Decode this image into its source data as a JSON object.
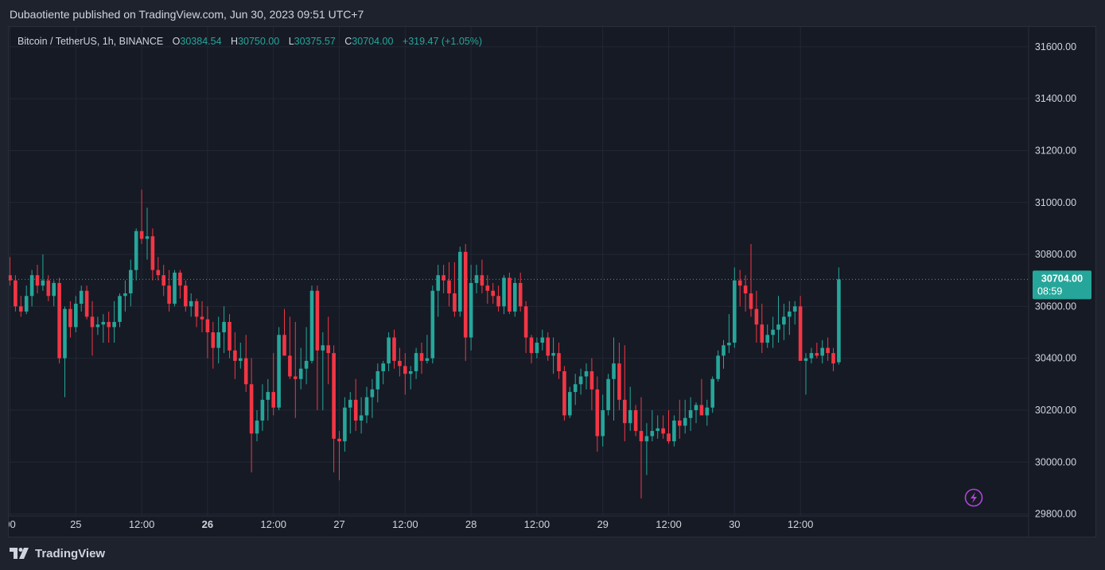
{
  "header": {
    "published": "Dubaotiente published on TradingView.com, Jun 30, 2023 09:51 UTC+7"
  },
  "legend": {
    "symbol": "Bitcoin / TetherUS, 1h, BINANCE",
    "o_label": "O",
    "o_value": "30384.54",
    "h_label": "H",
    "h_value": "30750.00",
    "l_label": "L",
    "l_value": "30375.57",
    "c_label": "C",
    "c_value": "30704.00",
    "change": "+319.47 (+1.05%)"
  },
  "price_tag": {
    "price": "30704.00",
    "countdown": "08:59"
  },
  "footer": {
    "brand": "TradingView"
  },
  "colors": {
    "up": "#26a69a",
    "down": "#f23645",
    "background": "#161a25",
    "grid": "#232735",
    "text": "#d1d4dc",
    "tag": "#26a69a",
    "bolt": "#b045d8"
  },
  "icons": {
    "logo": "tradingview-logo-icon",
    "bolt": "lightning-bolt-icon"
  },
  "chart_data": {
    "type": "candlestick",
    "title": "Bitcoin / TetherUS, 1h, BINANCE",
    "ylim": [
      29700,
      31700
    ],
    "y_ticks": [
      "31600.00",
      "31400.00",
      "31200.00",
      "31000.00",
      "30800.00",
      "30600.00",
      "30400.00",
      "30200.00",
      "30000.00",
      "29800.00"
    ],
    "x_ticks": [
      {
        "label": "00",
        "i": 0,
        "bold": false
      },
      {
        "label": "25",
        "i": 12,
        "bold": false
      },
      {
        "label": "12:00",
        "i": 24,
        "bold": false
      },
      {
        "label": "26",
        "i": 36,
        "bold": true
      },
      {
        "label": "12:00",
        "i": 48,
        "bold": false
      },
      {
        "label": "27",
        "i": 60,
        "bold": false
      },
      {
        "label": "12:00",
        "i": 72,
        "bold": false
      },
      {
        "label": "28",
        "i": 84,
        "bold": false
      },
      {
        "label": "12:00",
        "i": 96,
        "bold": false
      },
      {
        "label": "29",
        "i": 108,
        "bold": false
      },
      {
        "label": "12:00",
        "i": 120,
        "bold": false
      },
      {
        "label": "30",
        "i": 132,
        "bold": false
      },
      {
        "label": "12:00",
        "i": 144,
        "bold": false
      }
    ],
    "last_price": 30704,
    "grid": true,
    "candles": [
      [
        30720,
        30790,
        30680,
        30700
      ],
      [
        30700,
        30720,
        30580,
        30600
      ],
      [
        30600,
        30640,
        30560,
        30580
      ],
      [
        30580,
        30680,
        30570,
        30640
      ],
      [
        30640,
        30740,
        30600,
        30720
      ],
      [
        30720,
        30760,
        30650,
        30680
      ],
      [
        30680,
        30800,
        30660,
        30700
      ],
      [
        30700,
        30720,
        30620,
        30640
      ],
      [
        30640,
        30700,
        30600,
        30690
      ],
      [
        30690,
        30710,
        30380,
        30400
      ],
      [
        30400,
        30600,
        30250,
        30590
      ],
      [
        30590,
        30620,
        30480,
        30520
      ],
      [
        30520,
        30640,
        30500,
        30610
      ],
      [
        30610,
        30680,
        30580,
        30660
      ],
      [
        30660,
        30680,
        30550,
        30560
      ],
      [
        30560,
        30620,
        30410,
        30520
      ],
      [
        30520,
        30560,
        30490,
        30530
      ],
      [
        30530,
        30570,
        30460,
        30540
      ],
      [
        30540,
        30580,
        30460,
        30520
      ],
      [
        30520,
        30620,
        30460,
        30540
      ],
      [
        30540,
        30650,
        30520,
        30640
      ],
      [
        30640,
        30700,
        30580,
        30650
      ],
      [
        30650,
        30780,
        30600,
        30740
      ],
      [
        30740,
        30900,
        30700,
        30890
      ],
      [
        30890,
        31050,
        30840,
        30860
      ],
      [
        30860,
        30980,
        30780,
        30870
      ],
      [
        30870,
        30900,
        30700,
        30740
      ],
      [
        30740,
        30790,
        30700,
        30720
      ],
      [
        30720,
        30760,
        30640,
        30680
      ],
      [
        30680,
        30740,
        30580,
        30610
      ],
      [
        30610,
        30740,
        30600,
        30730
      ],
      [
        30730,
        30740,
        30630,
        30680
      ],
      [
        30680,
        30700,
        30580,
        30600
      ],
      [
        30600,
        30650,
        30560,
        30620
      ],
      [
        30620,
        30630,
        30520,
        30560
      ],
      [
        30560,
        30620,
        30500,
        30550
      ],
      [
        30550,
        30600,
        30400,
        30500
      ],
      [
        30500,
        30540,
        30360,
        30440
      ],
      [
        30440,
        30560,
        30380,
        30500
      ],
      [
        30500,
        30600,
        30420,
        30540
      ],
      [
        30540,
        30570,
        30400,
        30430
      ],
      [
        30430,
        30500,
        30320,
        30390
      ],
      [
        30390,
        30460,
        30360,
        30400
      ],
      [
        30400,
        30490,
        30270,
        30300
      ],
      [
        30300,
        30400,
        29960,
        30110
      ],
      [
        30110,
        30200,
        30080,
        30160
      ],
      [
        30160,
        30300,
        30120,
        30240
      ],
      [
        30240,
        30320,
        30160,
        30270
      ],
      [
        30270,
        30420,
        30180,
        30210
      ],
      [
        30210,
        30520,
        30200,
        30490
      ],
      [
        30490,
        30590,
        30420,
        30410
      ],
      [
        30410,
        30560,
        30320,
        30330
      ],
      [
        30330,
        30540,
        30170,
        30320
      ],
      [
        30320,
        30440,
        30280,
        30360
      ],
      [
        30360,
        30520,
        30300,
        30390
      ],
      [
        30390,
        30680,
        30380,
        30660
      ],
      [
        30660,
        30680,
        30200,
        30430
      ],
      [
        30430,
        30500,
        30200,
        30450
      ],
      [
        30450,
        30560,
        30300,
        30420
      ],
      [
        30420,
        30450,
        29960,
        30090
      ],
      [
        30090,
        30120,
        29930,
        30080
      ],
      [
        30080,
        30250,
        30040,
        30210
      ],
      [
        30210,
        30270,
        30110,
        30240
      ],
      [
        30240,
        30320,
        30120,
        30160
      ],
      [
        30160,
        30250,
        30110,
        30180
      ],
      [
        30180,
        30290,
        30150,
        30250
      ],
      [
        30250,
        30320,
        30170,
        30280
      ],
      [
        30280,
        30380,
        30230,
        30350
      ],
      [
        30350,
        30390,
        30300,
        30380
      ],
      [
        30380,
        30500,
        30350,
        30480
      ],
      [
        30480,
        30510,
        30360,
        30390
      ],
      [
        30390,
        30440,
        30330,
        30370
      ],
      [
        30370,
        30420,
        30260,
        30340
      ],
      [
        30340,
        30370,
        30280,
        30350
      ],
      [
        30350,
        30440,
        30320,
        30420
      ],
      [
        30420,
        30460,
        30340,
        30390
      ],
      [
        30390,
        30490,
        30380,
        30400
      ],
      [
        30400,
        30680,
        30380,
        30660
      ],
      [
        30660,
        30760,
        30560,
        30720
      ],
      [
        30720,
        30760,
        30650,
        30700
      ],
      [
        30700,
        30770,
        30600,
        30650
      ],
      [
        30650,
        30770,
        30560,
        30580
      ],
      [
        30580,
        30830,
        30560,
        30810
      ],
      [
        30810,
        30840,
        30390,
        30480
      ],
      [
        30480,
        30760,
        30430,
        30690
      ],
      [
        30690,
        30760,
        30650,
        30720
      ],
      [
        30720,
        30780,
        30650,
        30680
      ],
      [
        30680,
        30720,
        30610,
        30660
      ],
      [
        30660,
        30690,
        30610,
        30640
      ],
      [
        30640,
        30680,
        30580,
        30600
      ],
      [
        30600,
        30720,
        30570,
        30710
      ],
      [
        30710,
        30730,
        30570,
        30580
      ],
      [
        30580,
        30710,
        30560,
        30690
      ],
      [
        30690,
        30730,
        30580,
        30600
      ],
      [
        30600,
        30620,
        30420,
        30480
      ],
      [
        30480,
        30490,
        30380,
        30420
      ],
      [
        30420,
        30480,
        30400,
        30460
      ],
      [
        30460,
        30510,
        30430,
        30480
      ],
      [
        30480,
        30500,
        30390,
        30410
      ],
      [
        30410,
        30480,
        30340,
        30420
      ],
      [
        30420,
        30460,
        30320,
        30350
      ],
      [
        30350,
        30370,
        30160,
        30180
      ],
      [
        30180,
        30290,
        30170,
        30270
      ],
      [
        30270,
        30340,
        30220,
        30300
      ],
      [
        30300,
        30360,
        30260,
        30330
      ],
      [
        30330,
        30380,
        30280,
        30350
      ],
      [
        30350,
        30400,
        30200,
        30280
      ],
      [
        30280,
        30330,
        30040,
        30100
      ],
      [
        30100,
        30260,
        30060,
        30200
      ],
      [
        30200,
        30340,
        30180,
        30320
      ],
      [
        30320,
        30480,
        30160,
        30380
      ],
      [
        30380,
        30460,
        30200,
        30240
      ],
      [
        30240,
        30450,
        30080,
        30150
      ],
      [
        30150,
        30290,
        30120,
        30200
      ],
      [
        30200,
        30220,
        30100,
        30120
      ],
      [
        30120,
        30250,
        29860,
        30080
      ],
      [
        30080,
        30150,
        29950,
        30100
      ],
      [
        30100,
        30200,
        30080,
        30120
      ],
      [
        30120,
        30180,
        30090,
        30130
      ],
      [
        30130,
        30180,
        30090,
        30110
      ],
      [
        30110,
        30200,
        30070,
        30080
      ],
      [
        30080,
        30180,
        30060,
        30160
      ],
      [
        30160,
        30240,
        30090,
        30140
      ],
      [
        30140,
        30240,
        30110,
        30170
      ],
      [
        30170,
        30250,
        30120,
        30200
      ],
      [
        30200,
        30230,
        30150,
        30220
      ],
      [
        30220,
        30320,
        30200,
        30180
      ],
      [
        30180,
        30240,
        30140,
        30210
      ],
      [
        30210,
        30330,
        30190,
        30320
      ],
      [
        30320,
        30430,
        30310,
        30410
      ],
      [
        30410,
        30470,
        30360,
        30450
      ],
      [
        30450,
        30570,
        30420,
        30460
      ],
      [
        30460,
        30750,
        30440,
        30700
      ],
      [
        30700,
        30740,
        30600,
        30680
      ],
      [
        30680,
        30720,
        30580,
        30650
      ],
      [
        30650,
        30840,
        30560,
        30590
      ],
      [
        30590,
        30660,
        30460,
        30530
      ],
      [
        30530,
        30610,
        30420,
        30460
      ],
      [
        30460,
        30530,
        30440,
        30490
      ],
      [
        30490,
        30560,
        30440,
        30510
      ],
      [
        30510,
        30640,
        30460,
        30530
      ],
      [
        30530,
        30610,
        30470,
        30560
      ],
      [
        30560,
        30620,
        30490,
        30580
      ],
      [
        30580,
        30620,
        30530,
        30600
      ],
      [
        30600,
        30640,
        30400,
        30390
      ],
      [
        30390,
        30420,
        30260,
        30400
      ],
      [
        30400,
        30440,
        30380,
        30420
      ],
      [
        30420,
        30460,
        30400,
        30410
      ],
      [
        30410,
        30470,
        30380,
        30440
      ],
      [
        30440,
        30480,
        30390,
        30420
      ],
      [
        30420,
        30440,
        30350,
        30380
      ],
      [
        30384.54,
        30750,
        30375.57,
        30704
      ]
    ]
  }
}
